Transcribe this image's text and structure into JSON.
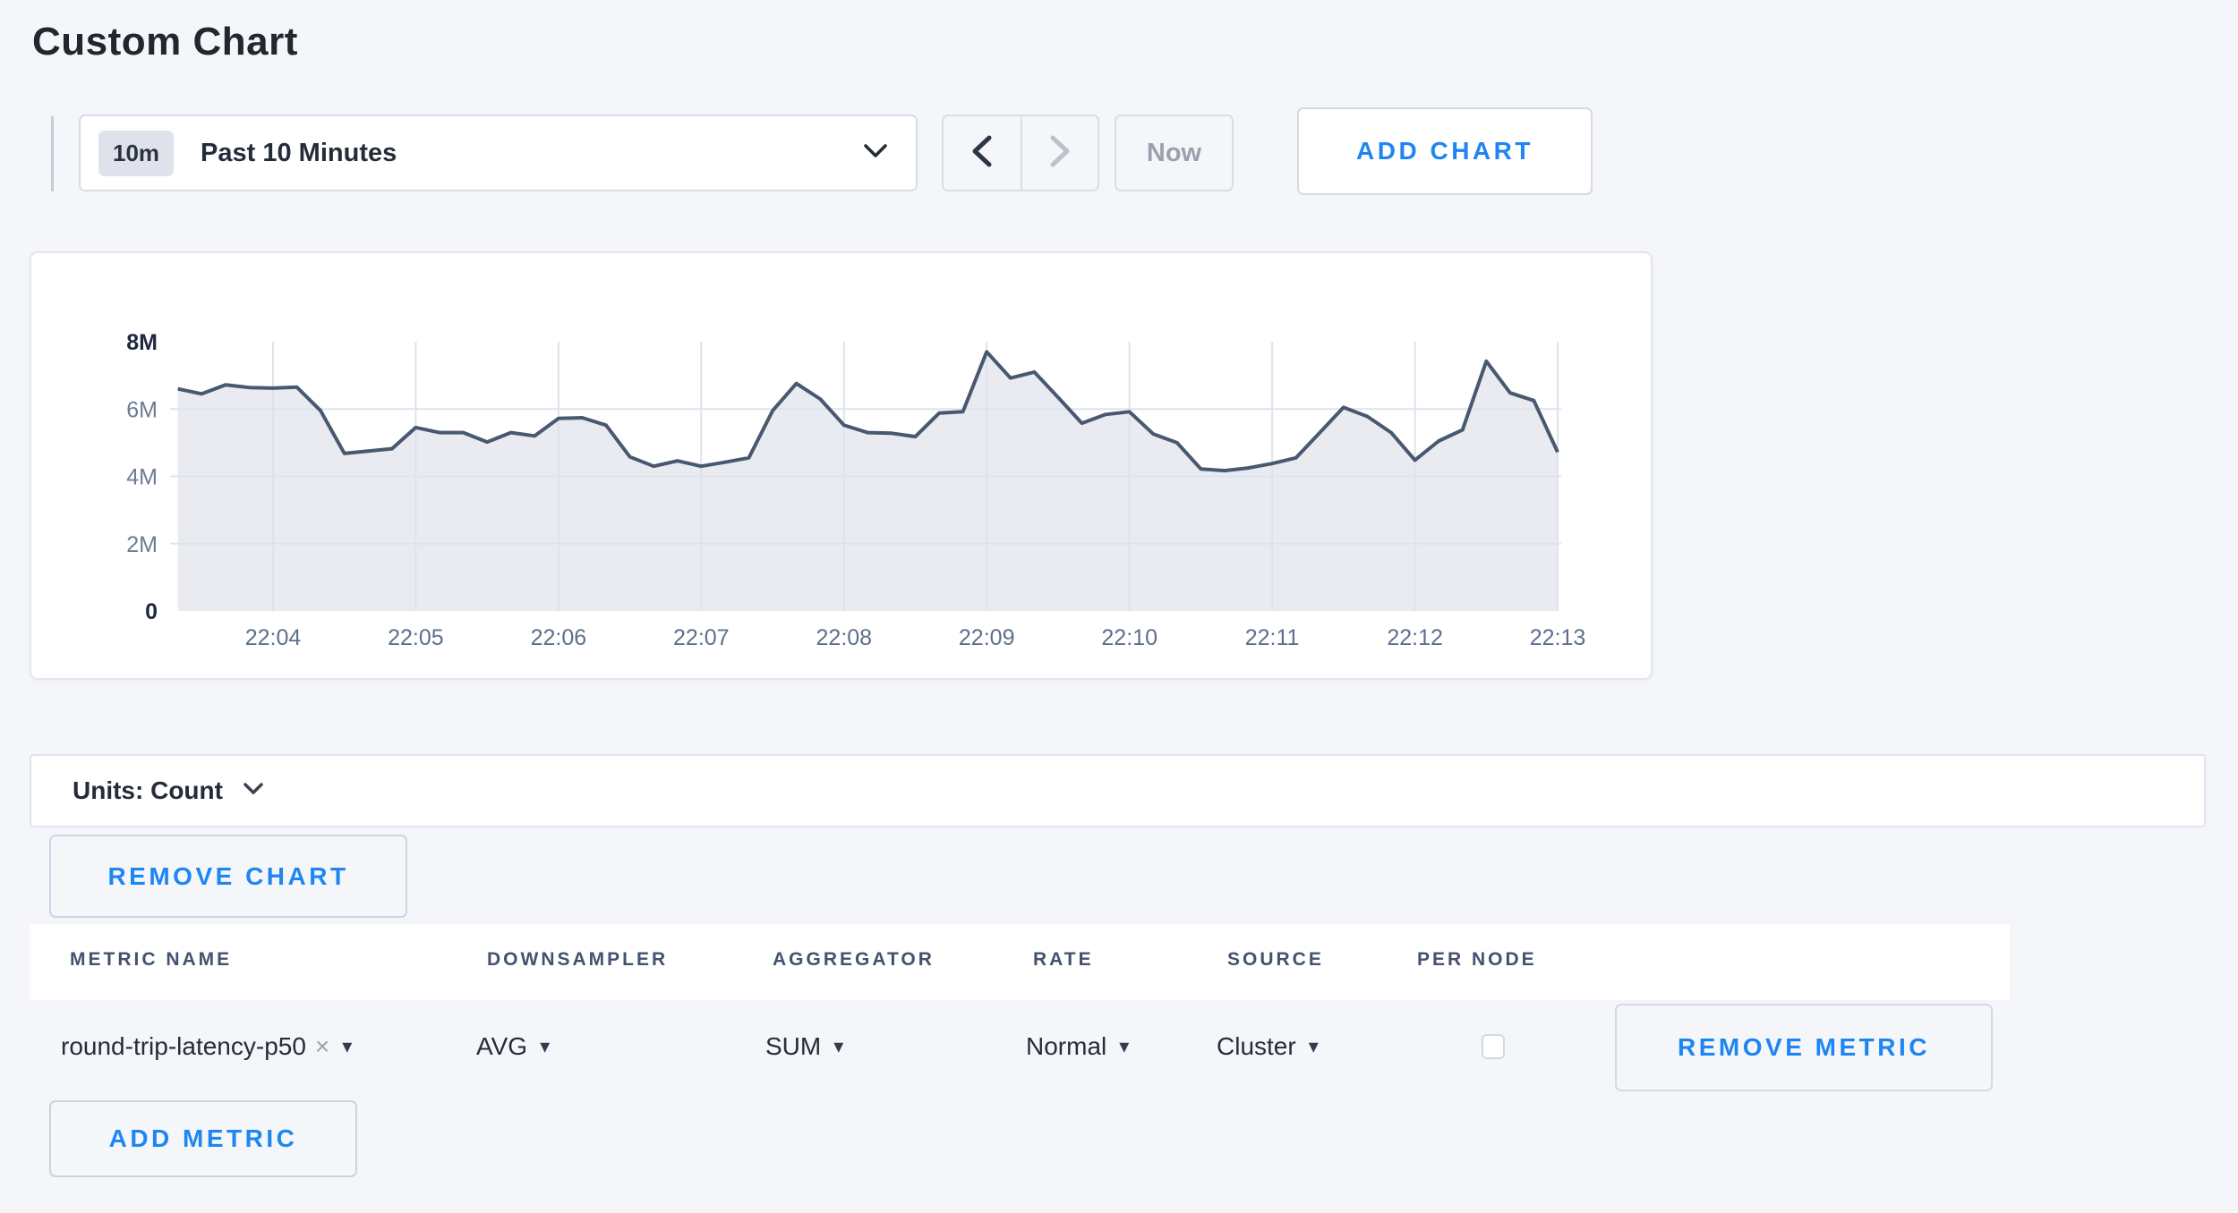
{
  "page": {
    "title": "Custom Chart"
  },
  "colors": {
    "accent_blue": "#1e86f2",
    "line": "#48586f",
    "fill": "#e9ebf1",
    "grid": "#dde3ee",
    "axis_dark": "#1e2940",
    "axis_light": "#6e7b93",
    "x_label": "#5e6f8c"
  },
  "toolbar": {
    "time_badge": "10m",
    "time_label": "Past 10 Minutes",
    "now_label": "Now",
    "add_chart_label": "ADD CHART"
  },
  "chart_data": {
    "type": "area",
    "title": "",
    "xlabel": "",
    "ylabel": "",
    "unit": "Count",
    "ylim": [
      0,
      8000000
    ],
    "grid": true,
    "y_tick_values_millions": [
      0,
      2,
      4,
      6,
      8
    ],
    "y_tick_labels": [
      "0",
      "2M",
      "4M",
      "6M",
      "8M"
    ],
    "x_tick_labels": [
      "22:04",
      "22:05",
      "22:06",
      "22:07",
      "22:08",
      "22:09",
      "22:10",
      "22:11",
      "22:12",
      "22:13"
    ],
    "points_per_minute": 6,
    "first_tick_point_index": 4,
    "series": [
      {
        "name": "round-trip-latency-p50",
        "values_millions": [
          6.6,
          6.45,
          6.72,
          6.64,
          6.62,
          6.65,
          5.95,
          4.68,
          4.75,
          4.82,
          5.45,
          5.3,
          5.3,
          5.02,
          5.3,
          5.2,
          5.72,
          5.74,
          5.52,
          4.58,
          4.3,
          4.46,
          4.3,
          4.42,
          4.55,
          5.95,
          6.76,
          6.3,
          5.52,
          5.3,
          5.28,
          5.18,
          5.88,
          5.92,
          7.7,
          6.92,
          7.1,
          6.35,
          5.58,
          5.84,
          5.92,
          5.26,
          5.0,
          4.22,
          4.17,
          4.25,
          4.38,
          4.55,
          5.3,
          6.05,
          5.78,
          5.3,
          4.48,
          5.05,
          5.38,
          7.42,
          6.48,
          6.25,
          4.72
        ]
      }
    ]
  },
  "units_bar": {
    "label": "Units: Count"
  },
  "chart_actions": {
    "remove_chart_label": "REMOVE CHART"
  },
  "metrics_table": {
    "headers": [
      "METRIC NAME",
      "DOWNSAMPLER",
      "AGGREGATOR",
      "RATE",
      "SOURCE",
      "PER NODE"
    ],
    "rows": [
      {
        "metric_name": "round-trip-latency-p50",
        "downsampler": "AVG",
        "aggregator": "SUM",
        "rate": "Normal",
        "source": "Cluster",
        "per_node_checked": false,
        "remove_label": "REMOVE METRIC"
      }
    ],
    "add_metric_label": "ADD METRIC"
  },
  "icons": {
    "caret_down": "▾",
    "close": "×"
  }
}
